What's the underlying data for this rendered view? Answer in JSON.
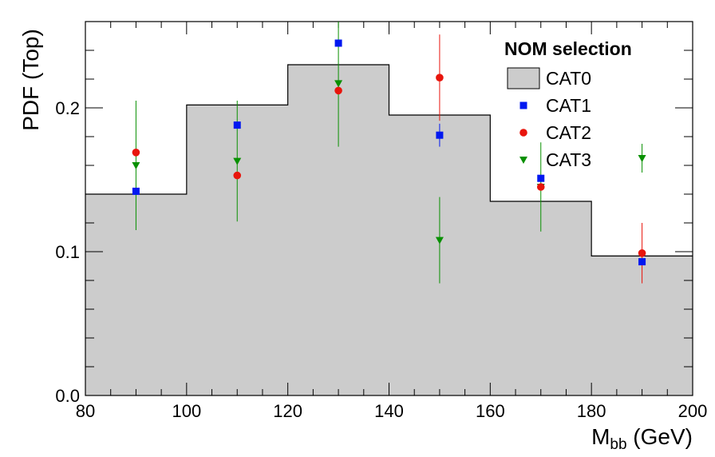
{
  "chart_data": {
    "type": "histogram",
    "xlabel": "M",
    "xlabel_sub": "bb",
    "xlabel_unit": " (GeV)",
    "ylabel": "PDF (Top)",
    "xlim": [
      80,
      200
    ],
    "ylim": [
      0,
      0.26
    ],
    "x_ticks": [
      80,
      100,
      120,
      140,
      160,
      180,
      200
    ],
    "y_ticks": [
      0.0,
      0.1,
      0.2
    ],
    "y_tick_labels": [
      "0.0",
      "0.1",
      "0.2"
    ],
    "legend_title": "NOM selection",
    "legend_position": "top-right",
    "histogram": {
      "name": "CAT0",
      "bin_edges": [
        80,
        100,
        120,
        140,
        160,
        180,
        200
      ],
      "values": [
        0.14,
        0.202,
        0.23,
        0.195,
        0.135,
        0.097
      ],
      "fill": "#cccccc",
      "line": "#000000"
    },
    "series": [
      {
        "name": "CAT1",
        "marker": "square",
        "color": "#0018f0",
        "points": [
          {
            "x": 90,
            "y": 0.142,
            "err": 0.0
          },
          {
            "x": 110,
            "y": 0.188,
            "err": 0.0
          },
          {
            "x": 130,
            "y": 0.245,
            "err": 0.0
          },
          {
            "x": 150,
            "y": 0.181,
            "err": 0.008
          },
          {
            "x": 170,
            "y": 0.151,
            "err": 0.0
          },
          {
            "x": 190,
            "y": 0.093,
            "err": 0.0
          }
        ]
      },
      {
        "name": "CAT2",
        "marker": "circle",
        "color": "#e8150c",
        "points": [
          {
            "x": 90,
            "y": 0.169,
            "err": 0.0
          },
          {
            "x": 110,
            "y": 0.153,
            "err": 0.0
          },
          {
            "x": 130,
            "y": 0.212,
            "err": 0.0
          },
          {
            "x": 150,
            "y": 0.221,
            "err": 0.03
          },
          {
            "x": 170,
            "y": 0.145,
            "err": 0.0
          },
          {
            "x": 190,
            "y": 0.099,
            "err": 0.021
          }
        ]
      },
      {
        "name": "CAT3",
        "marker": "triangle-down",
        "color": "#089000",
        "points": [
          {
            "x": 90,
            "y": 0.16,
            "err": 0.045
          },
          {
            "x": 110,
            "y": 0.163,
            "err": 0.042
          },
          {
            "x": 130,
            "y": 0.217,
            "err": 0.044
          },
          {
            "x": 150,
            "y": 0.108,
            "err": 0.03
          },
          {
            "x": 170,
            "y": 0.145,
            "err": 0.031
          },
          {
            "x": 190,
            "y": 0.165,
            "err": 0.01
          }
        ]
      }
    ]
  }
}
